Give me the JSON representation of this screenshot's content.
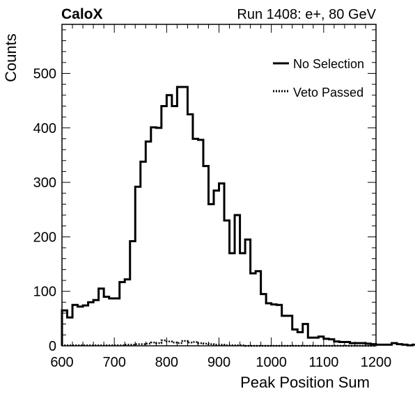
{
  "chart_data": {
    "type": "histogram",
    "experiment_label": "CaloX",
    "run_label": "Run 1408: e+, 80 GeV",
    "xlabel": "Peak Position Sum",
    "ylabel": "Counts",
    "xlim": [
      600,
      1200
    ],
    "ylim": [
      0,
      590
    ],
    "bin_width": 10,
    "x_ticks": [
      600,
      700,
      800,
      900,
      1000,
      1100,
      1200
    ],
    "y_ticks": [
      0,
      100,
      200,
      300,
      400,
      500
    ],
    "legend_position": "top-right",
    "series": [
      {
        "name": "No Selection",
        "style": "solid",
        "bin_edges_start": 600,
        "values": [
          65,
          52,
          75,
          72,
          74,
          80,
          84,
          105,
          90,
          87,
          87,
          117,
          122,
          192,
          292,
          338,
          375,
          401,
          400,
          440,
          460,
          440,
          475,
          475,
          425,
          380,
          378,
          330,
          260,
          285,
          298,
          230,
          170,
          240,
          170,
          195,
          133,
          137,
          95,
          78,
          76,
          75,
          55,
          55,
          30,
          25,
          40,
          15,
          15,
          17,
          13,
          12,
          8,
          7,
          7,
          5,
          5,
          5,
          4,
          3,
          2,
          2,
          2,
          5,
          3,
          2,
          1,
          2,
          1,
          1,
          0,
          0,
          0,
          0,
          0,
          0,
          0,
          0,
          0,
          0
        ]
      },
      {
        "name": "Veto Passed",
        "style": "dotted",
        "bin_edges_start": 600,
        "values": [
          1,
          1,
          1,
          1,
          1,
          1,
          1,
          1,
          1,
          1,
          1,
          1,
          2,
          2,
          3,
          3,
          4,
          6,
          5,
          10,
          8,
          6,
          5,
          9,
          6,
          7,
          5,
          4,
          3,
          2,
          2,
          1,
          1,
          1,
          1,
          0,
          0,
          0,
          0,
          0,
          0,
          0,
          0,
          0,
          0,
          0,
          0,
          0,
          0,
          0,
          0,
          0,
          0,
          0,
          0,
          0,
          0,
          0,
          0,
          0
        ]
      }
    ]
  }
}
